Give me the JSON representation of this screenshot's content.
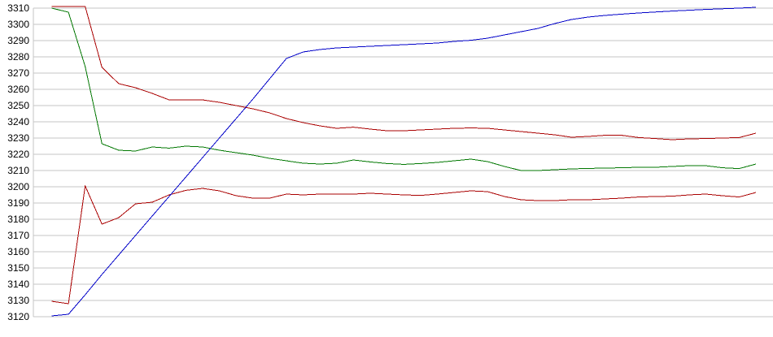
{
  "chart_data": {
    "type": "line",
    "title": "",
    "xlabel": "",
    "ylabel": "",
    "x_axis_labels_visible": false,
    "legend": false,
    "grid": true,
    "n_points": 43,
    "yaxis": {
      "min": 3120,
      "max": 3310,
      "step": 10,
      "tick_labels": [
        "3310",
        "3300",
        "3290",
        "3280",
        "3270",
        "3260",
        "3250",
        "3240",
        "3230",
        "3220",
        "3210",
        "3200",
        "3190",
        "3180",
        "3170",
        "3160",
        "3150",
        "3140",
        "3130",
        "3120"
      ]
    },
    "colors": {
      "background": "#ffffff",
      "grid": "#c6c6c6",
      "axis": "#c6c6c6",
      "text": "#000000",
      "blue": "#0000c8",
      "red": "#aa0000",
      "green": "#007700"
    },
    "series": [
      {
        "name": "green-line",
        "color": "#007700",
        "values": [
          3310,
          3307.5,
          3274,
          3226.5,
          3222.5,
          3222,
          3224.5,
          3223.8,
          3225,
          3224.5,
          3222.5,
          3221,
          3219.5,
          3217.5,
          3216,
          3214.5,
          3214,
          3214.5,
          3216.5,
          3215.3,
          3214.3,
          3213.8,
          3214.3,
          3215,
          3216,
          3217,
          3215.5,
          3212.5,
          3210,
          3210,
          3210.5,
          3211,
          3211.3,
          3211.5,
          3211.7,
          3212,
          3212,
          3212.5,
          3213,
          3213,
          3211.7,
          3211.2,
          3214
        ]
      },
      {
        "name": "red-upper-line",
        "color": "#aa0000",
        "values": [
          3311,
          3311,
          3311,
          3273.5,
          3263.5,
          3261,
          3257.5,
          3253.5,
          3253.5,
          3253.5,
          3252,
          3250,
          3248,
          3245.5,
          3242,
          3239.5,
          3237.5,
          3236,
          3236.7,
          3235.5,
          3234.5,
          3234.5,
          3235,
          3235.5,
          3236,
          3236.2,
          3236,
          3235,
          3234,
          3233,
          3232,
          3230.5,
          3231,
          3231.7,
          3231.7,
          3230.3,
          3229.7,
          3229,
          3229.5,
          3229.7,
          3230,
          3230.3,
          3233
        ]
      },
      {
        "name": "red-lower-line",
        "color": "#aa0000",
        "values": [
          3129.5,
          3128,
          3200.5,
          3177,
          3181,
          3189.5,
          3190.5,
          3195,
          3197.8,
          3199,
          3197.5,
          3194.5,
          3193,
          3193,
          3195.5,
          3195,
          3195.5,
          3195.5,
          3195.5,
          3196,
          3195.5,
          3195,
          3194.7,
          3195.5,
          3196.5,
          3197.5,
          3197,
          3194,
          3192,
          3191.5,
          3191.5,
          3192,
          3192,
          3192.5,
          3193,
          3193.7,
          3194,
          3194.2,
          3195,
          3195.5,
          3194.5,
          3193.7,
          3196.5
        ]
      },
      {
        "name": "blue-line",
        "color": "#0000c8",
        "values": [
          3120.5,
          3121.5,
          3133.5,
          3146,
          3158,
          3170,
          3182,
          3194,
          3206,
          3218,
          3230,
          3242,
          3254,
          3266.5,
          3279,
          3283,
          3284.5,
          3285.5,
          3286,
          3286.5,
          3287,
          3287.5,
          3288,
          3288.5,
          3289.5,
          3290.2,
          3291.5,
          3293.5,
          3295.5,
          3297.5,
          3300.5,
          3303,
          3304.5,
          3305.5,
          3306.3,
          3307,
          3307.6,
          3308.2,
          3308.7,
          3309.2,
          3309.6,
          3310,
          3310.5
        ]
      }
    ]
  }
}
